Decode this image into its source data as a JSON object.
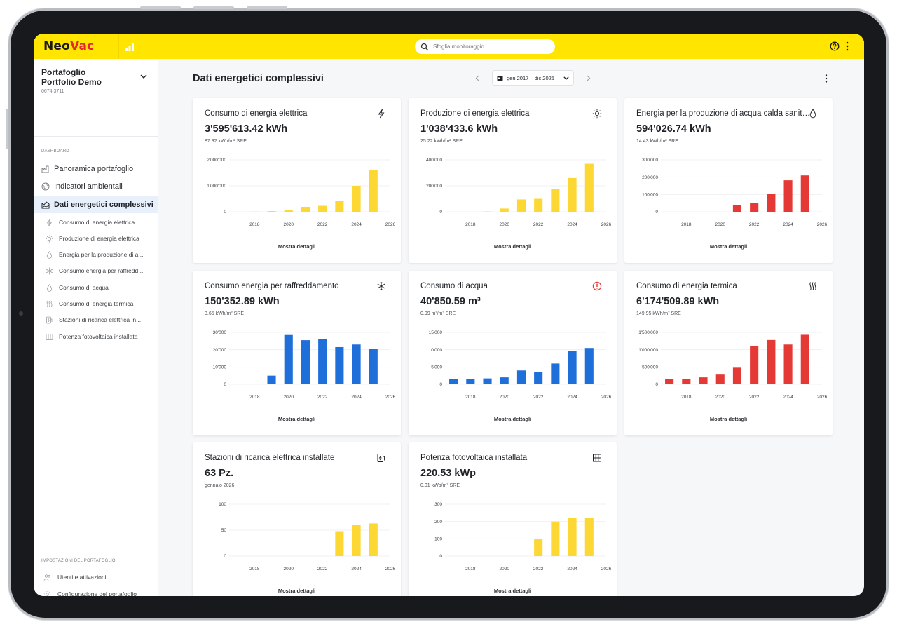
{
  "app": {
    "logo_neo": "Neo",
    "logo_vac": "Vac",
    "search_placeholder": "Sfoglia monitoraggio"
  },
  "sidebar": {
    "portfolio_label": "Portafoglio",
    "portfolio_name": "Portfolio Demo",
    "portfolio_id": "0674 3711",
    "dashboard_label": "DASHBOARD",
    "items": [
      {
        "label": "Panoramica portafoglio",
        "icon": "factory-icon"
      },
      {
        "label": "Indicatori ambientali",
        "icon": "globe-icon"
      },
      {
        "label": "Dati energetici complessivi",
        "icon": "energy-chart-icon",
        "active": true
      }
    ],
    "sub_items": [
      {
        "label": "Consumo di energia elettrica",
        "icon": "lightning-icon"
      },
      {
        "label": "Produzione di energia elettrica",
        "icon": "sun-icon"
      },
      {
        "label": "Energia per la produzione di a...",
        "icon": "drop-icon"
      },
      {
        "label": "Consumo energia per raffredd...",
        "icon": "snowflake-icon"
      },
      {
        "label": "Consumo di acqua",
        "icon": "drop-icon"
      },
      {
        "label": "Consumo di energia termica",
        "icon": "heat-icon"
      },
      {
        "label": "Stazioni di ricarica elettrica in...",
        "icon": "charging-station-icon"
      },
      {
        "label": "Potenza fotovoltaica installata",
        "icon": "solar-panel-icon"
      }
    ],
    "settings_label": "IMPOSTAZIONI DEL PORTAFOGLIO",
    "settings_items": [
      {
        "label": "Utenti e attivazioni",
        "icon": "users-icon"
      },
      {
        "label": "Configurazione del portafoglio",
        "icon": "gear-icon"
      }
    ]
  },
  "main": {
    "title": "Dati energetici complessivi",
    "date_range": "gen 2017 – dic 2025",
    "details_label": "Mostra dettagli"
  },
  "colors": {
    "yellow": "#fdd835",
    "red": "#e53935",
    "blue": "#1e6fd9"
  },
  "cards": [
    {
      "title": "Consumo di energia elettrica",
      "icon": "lightning-icon",
      "value": "3'595'613.42 kWh",
      "sub": "87.32 kWh/m² SRE",
      "chart_data": {
        "type": "bar",
        "color": "yellow",
        "x": [
          2017,
          2018,
          2019,
          2020,
          2021,
          2022,
          2023,
          2024,
          2025
        ],
        "values": [
          0,
          5000,
          25000,
          80000,
          190000,
          230000,
          420000,
          1000000,
          1600000
        ],
        "ylim": [
          0,
          2000000
        ],
        "yticks": [
          0,
          1000000,
          2000000
        ],
        "ytick_labels": [
          "0",
          "1'000'000",
          "2'000'000"
        ],
        "xticks": [
          "2018",
          "2020",
          "2022",
          "2024",
          "2026"
        ],
        "xlim": [
          2016.5,
          2026
        ]
      }
    },
    {
      "title": "Produzione di energia elettrica",
      "icon": "sun-icon",
      "value": "1'038'433.6 kWh",
      "sub": "25.22 kWh/m² SRE",
      "chart_data": {
        "type": "bar",
        "color": "yellow",
        "x": [
          2017,
          2018,
          2019,
          2020,
          2021,
          2022,
          2023,
          2024,
          2025
        ],
        "values": [
          0,
          0,
          2000,
          25000,
          95000,
          100000,
          175000,
          260000,
          370000
        ],
        "ylim": [
          0,
          400000
        ],
        "yticks": [
          0,
          200000,
          400000
        ],
        "ytick_labels": [
          "0",
          "200'000",
          "400'000"
        ],
        "xticks": [
          "2018",
          "2020",
          "2022",
          "2024",
          "2026"
        ],
        "xlim": [
          2016.5,
          2026
        ]
      }
    },
    {
      "title": "Energia per la produzione di acqua calda sanitaria",
      "icon": "drop-icon",
      "value": "594'026.74 kWh",
      "sub": "14.43 kWh/m² SRE",
      "chart_data": {
        "type": "bar",
        "color": "red",
        "x": [
          2017,
          2018,
          2019,
          2020,
          2021,
          2022,
          2023,
          2024,
          2025
        ],
        "values": [
          0,
          0,
          0,
          0,
          38000,
          52000,
          105000,
          182000,
          210000
        ],
        "ylim": [
          0,
          300000
        ],
        "yticks": [
          0,
          100000,
          200000,
          300000
        ],
        "ytick_labels": [
          "0",
          "100'000",
          "200'000",
          "300'000"
        ],
        "xticks": [
          "2018",
          "2020",
          "2022",
          "2024",
          "2026"
        ],
        "xlim": [
          2016.5,
          2026
        ]
      }
    },
    {
      "title": "Consumo energia per raffreddamento",
      "icon": "snowflake-icon",
      "value": "150'352.89 kWh",
      "sub": "3.65 kWh/m² SRE",
      "chart_data": {
        "type": "bar",
        "color": "blue",
        "x": [
          2017,
          2018,
          2019,
          2020,
          2021,
          2022,
          2023,
          2024,
          2025
        ],
        "values": [
          0,
          0,
          5000,
          28500,
          25500,
          26000,
          21500,
          23000,
          20500
        ],
        "ylim": [
          0,
          30000
        ],
        "yticks": [
          0,
          10000,
          20000,
          30000
        ],
        "ytick_labels": [
          "0",
          "10'000",
          "20'000",
          "30'000"
        ],
        "xticks": [
          "2018",
          "2020",
          "2022",
          "2024",
          "2026"
        ],
        "xlim": [
          2016.5,
          2026
        ]
      }
    },
    {
      "title": "Consumo di acqua",
      "icon": "alert-icon",
      "value": "40'850.59 m³",
      "sub": "0.99 m³/m² SRE",
      "chart_data": {
        "type": "bar",
        "color": "blue",
        "x": [
          2017,
          2018,
          2019,
          2020,
          2021,
          2022,
          2023,
          2024,
          2025
        ],
        "values": [
          1500,
          1600,
          1700,
          2000,
          4000,
          3600,
          6000,
          9600,
          10500
        ],
        "ylim": [
          0,
          15000
        ],
        "yticks": [
          0,
          5000,
          10000,
          15000
        ],
        "ytick_labels": [
          "0",
          "5'000",
          "10'000",
          "15'000"
        ],
        "xticks": [
          "2018",
          "2020",
          "2022",
          "2024",
          "2026"
        ],
        "xlim": [
          2016.5,
          2026
        ]
      }
    },
    {
      "title": "Consumo di energia termica",
      "icon": "heat-icon",
      "value": "6'174'509.89 kWh",
      "sub": "149.95 kWh/m² SRE",
      "chart_data": {
        "type": "bar",
        "color": "red",
        "x": [
          2017,
          2018,
          2019,
          2020,
          2021,
          2022,
          2023,
          2024,
          2025
        ],
        "values": [
          150000,
          150000,
          200000,
          280000,
          480000,
          1100000,
          1280000,
          1150000,
          1430000
        ],
        "ylim": [
          0,
          1500000
        ],
        "yticks": [
          0,
          500000,
          1000000,
          1500000
        ],
        "ytick_labels": [
          "0",
          "500'000",
          "1'000'000",
          "1'500'000"
        ],
        "xticks": [
          "2018",
          "2020",
          "2022",
          "2024",
          "2026"
        ],
        "xlim": [
          2016.5,
          2026
        ]
      }
    },
    {
      "title": "Stazioni di ricarica elettrica installate",
      "icon": "charging-station-icon",
      "value": "63 Pz.",
      "sub": "gennaio 2026",
      "chart_data": {
        "type": "bar",
        "color": "yellow",
        "x": [
          2017,
          2018,
          2019,
          2020,
          2021,
          2022,
          2023,
          2024,
          2025
        ],
        "values": [
          0,
          0,
          0,
          0,
          0,
          0,
          48,
          60,
          63
        ],
        "ylim": [
          0,
          100
        ],
        "yticks": [
          0,
          50,
          100
        ],
        "ytick_labels": [
          "0",
          "50",
          "100"
        ],
        "xticks": [
          "2018",
          "2020",
          "2022",
          "2024",
          "2026"
        ],
        "xlim": [
          2016.5,
          2026
        ]
      }
    },
    {
      "title": "Potenza fotovoltaica installata",
      "icon": "solar-panel-icon",
      "value": "220.53 kWp",
      "sub": "0.01 kWp/m² SRE",
      "chart_data": {
        "type": "bar",
        "color": "yellow",
        "x": [
          2017,
          2018,
          2019,
          2020,
          2021,
          2022,
          2023,
          2024,
          2025
        ],
        "values": [
          0,
          0,
          0,
          0,
          0,
          100,
          200,
          220,
          220
        ],
        "ylim": [
          0,
          300
        ],
        "yticks": [
          0,
          100,
          200,
          300
        ],
        "ytick_labels": [
          "0",
          "100",
          "200",
          "300"
        ],
        "xticks": [
          "2018",
          "2020",
          "2022",
          "2024",
          "2026"
        ],
        "xlim": [
          2016.5,
          2026
        ]
      }
    }
  ]
}
